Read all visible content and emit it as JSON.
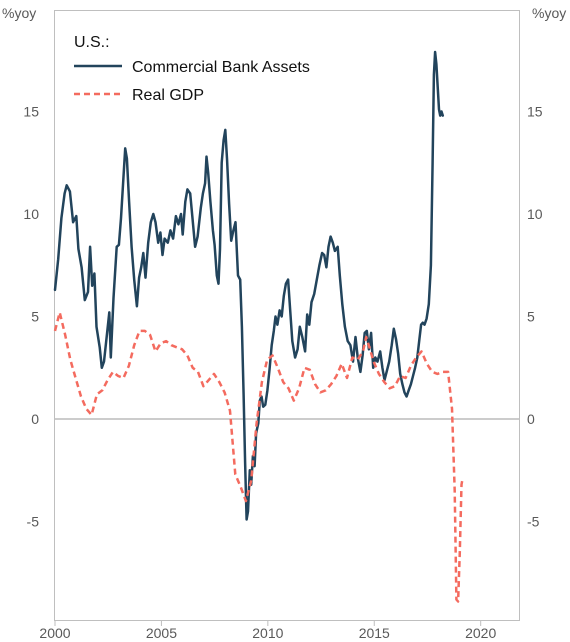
{
  "chart_data": {
    "type": "line",
    "title": "",
    "y_unit_left": "%yoy",
    "y_unit_right": "%yoy",
    "legend_title": "U.S.:",
    "legend_position": "top-left",
    "grid": false,
    "xlim": [
      2000,
      2021.8
    ],
    "ylim": [
      -9.8,
      19.9
    ],
    "x_ticks": [
      2000,
      2005,
      2010,
      2015,
      2020
    ],
    "x_tick_labels": [
      "2000",
      "2005",
      "2010",
      "2015",
      "2020"
    ],
    "y_ticks": [
      -5,
      0,
      5,
      10,
      15
    ],
    "y_tick_labels": [
      "-5",
      "0",
      "5",
      "10",
      "15"
    ],
    "series": [
      {
        "name": "Commercial Bank Assets",
        "color": "#22445c",
        "style": "solid",
        "points": [
          [
            2000.0,
            6.3
          ],
          [
            2000.15,
            7.8
          ],
          [
            2000.3,
            9.8
          ],
          [
            2000.45,
            11.0
          ],
          [
            2000.55,
            11.4
          ],
          [
            2000.7,
            11.1
          ],
          [
            2000.85,
            9.6
          ],
          [
            2001.0,
            9.9
          ],
          [
            2001.1,
            8.3
          ],
          [
            2001.25,
            7.4
          ],
          [
            2001.4,
            5.8
          ],
          [
            2001.55,
            6.2
          ],
          [
            2001.65,
            8.4
          ],
          [
            2001.75,
            6.5
          ],
          [
            2001.85,
            7.1
          ],
          [
            2001.95,
            4.5
          ],
          [
            2002.1,
            3.5
          ],
          [
            2002.2,
            2.5
          ],
          [
            2002.3,
            2.8
          ],
          [
            2002.45,
            4.2
          ],
          [
            2002.55,
            5.2
          ],
          [
            2002.62,
            3.0
          ],
          [
            2002.75,
            5.9
          ],
          [
            2002.9,
            8.4
          ],
          [
            2003.0,
            8.5
          ],
          [
            2003.1,
            9.8
          ],
          [
            2003.2,
            11.5
          ],
          [
            2003.3,
            13.2
          ],
          [
            2003.38,
            12.7
          ],
          [
            2003.48,
            10.6
          ],
          [
            2003.6,
            8.4
          ],
          [
            2003.72,
            6.8
          ],
          [
            2003.85,
            5.5
          ],
          [
            2003.95,
            6.9
          ],
          [
            2004.05,
            7.4
          ],
          [
            2004.15,
            8.1
          ],
          [
            2004.25,
            6.9
          ],
          [
            2004.38,
            8.6
          ],
          [
            2004.5,
            9.6
          ],
          [
            2004.62,
            10.0
          ],
          [
            2004.72,
            9.6
          ],
          [
            2004.85,
            8.6
          ],
          [
            2004.95,
            9.1
          ],
          [
            2005.05,
            8.0
          ],
          [
            2005.15,
            8.8
          ],
          [
            2005.3,
            8.6
          ],
          [
            2005.42,
            9.2
          ],
          [
            2005.55,
            8.8
          ],
          [
            2005.68,
            9.9
          ],
          [
            2005.8,
            9.5
          ],
          [
            2005.92,
            10.0
          ],
          [
            2006.0,
            9.0
          ],
          [
            2006.12,
            10.6
          ],
          [
            2006.22,
            11.2
          ],
          [
            2006.35,
            11.0
          ],
          [
            2006.45,
            9.9
          ],
          [
            2006.58,
            8.4
          ],
          [
            2006.7,
            8.9
          ],
          [
            2006.85,
            10.3
          ],
          [
            2006.95,
            11.0
          ],
          [
            2007.05,
            11.5
          ],
          [
            2007.12,
            12.8
          ],
          [
            2007.2,
            12.0
          ],
          [
            2007.3,
            10.6
          ],
          [
            2007.42,
            9.2
          ],
          [
            2007.5,
            8.5
          ],
          [
            2007.6,
            7.0
          ],
          [
            2007.68,
            6.6
          ],
          [
            2007.75,
            8.3
          ],
          [
            2007.83,
            12.5
          ],
          [
            2007.92,
            13.6
          ],
          [
            2008.0,
            14.1
          ],
          [
            2008.08,
            12.7
          ],
          [
            2008.18,
            10.5
          ],
          [
            2008.28,
            8.7
          ],
          [
            2008.38,
            9.2
          ],
          [
            2008.48,
            9.6
          ],
          [
            2008.6,
            7.0
          ],
          [
            2008.7,
            6.8
          ],
          [
            2008.78,
            4.5
          ],
          [
            2008.86,
            1.2
          ],
          [
            2008.93,
            -2.1
          ],
          [
            2009.0,
            -4.9
          ],
          [
            2009.07,
            -4.5
          ],
          [
            2009.15,
            -2.5
          ],
          [
            2009.22,
            -3.2
          ],
          [
            2009.3,
            -1.8
          ],
          [
            2009.38,
            -2.3
          ],
          [
            2009.45,
            -0.7
          ],
          [
            2009.55,
            -0.2
          ],
          [
            2009.62,
            0.9
          ],
          [
            2009.7,
            1.1
          ],
          [
            2009.78,
            0.6
          ],
          [
            2009.88,
            0.7
          ],
          [
            2009.98,
            1.4
          ],
          [
            2010.08,
            2.4
          ],
          [
            2010.18,
            3.6
          ],
          [
            2010.28,
            4.3
          ],
          [
            2010.36,
            5.0
          ],
          [
            2010.45,
            4.6
          ],
          [
            2010.55,
            5.3
          ],
          [
            2010.65,
            5.0
          ],
          [
            2010.75,
            6.0
          ],
          [
            2010.85,
            6.6
          ],
          [
            2010.95,
            6.8
          ],
          [
            2011.05,
            5.3
          ],
          [
            2011.15,
            3.8
          ],
          [
            2011.28,
            3.0
          ],
          [
            2011.4,
            3.4
          ],
          [
            2011.5,
            4.5
          ],
          [
            2011.62,
            4.0
          ],
          [
            2011.75,
            3.3
          ],
          [
            2011.85,
            5.1
          ],
          [
            2011.95,
            4.6
          ],
          [
            2012.05,
            5.7
          ],
          [
            2012.18,
            6.1
          ],
          [
            2012.3,
            6.8
          ],
          [
            2012.42,
            7.5
          ],
          [
            2012.55,
            8.1
          ],
          [
            2012.65,
            8.0
          ],
          [
            2012.75,
            7.4
          ],
          [
            2012.85,
            8.4
          ],
          [
            2012.95,
            8.9
          ],
          [
            2013.05,
            8.6
          ],
          [
            2013.15,
            8.2
          ],
          [
            2013.28,
            8.4
          ],
          [
            2013.38,
            7.0
          ],
          [
            2013.5,
            5.6
          ],
          [
            2013.62,
            4.5
          ],
          [
            2013.75,
            3.8
          ],
          [
            2013.88,
            3.6
          ],
          [
            2014.0,
            2.8
          ],
          [
            2014.12,
            4.0
          ],
          [
            2014.22,
            3.0
          ],
          [
            2014.35,
            2.3
          ],
          [
            2014.45,
            3.1
          ],
          [
            2014.55,
            4.2
          ],
          [
            2014.65,
            4.3
          ],
          [
            2014.75,
            3.4
          ],
          [
            2014.85,
            4.2
          ],
          [
            2014.95,
            2.5
          ],
          [
            2015.05,
            3.0
          ],
          [
            2015.15,
            2.8
          ],
          [
            2015.28,
            3.3
          ],
          [
            2015.38,
            2.5
          ],
          [
            2015.48,
            1.9
          ],
          [
            2015.58,
            2.3
          ],
          [
            2015.7,
            2.8
          ],
          [
            2015.82,
            3.6
          ],
          [
            2015.92,
            4.4
          ],
          [
            2016.02,
            3.9
          ],
          [
            2016.12,
            3.2
          ],
          [
            2016.22,
            2.2
          ],
          [
            2016.32,
            1.7
          ],
          [
            2016.42,
            1.3
          ],
          [
            2016.52,
            1.1
          ],
          [
            2016.62,
            1.4
          ],
          [
            2016.72,
            1.7
          ],
          [
            2016.82,
            2.1
          ],
          [
            2016.92,
            2.5
          ],
          [
            2017.02,
            3.0
          ],
          [
            2017.12,
            3.9
          ],
          [
            2017.2,
            4.6
          ],
          [
            2017.28,
            4.7
          ],
          [
            2017.36,
            4.6
          ],
          [
            2017.46,
            4.9
          ],
          [
            2017.56,
            5.6
          ],
          [
            2017.66,
            7.5
          ],
          [
            2017.74,
            12.5
          ],
          [
            2017.8,
            16.8
          ],
          [
            2017.86,
            17.9
          ],
          [
            2017.92,
            17.3
          ],
          [
            2017.98,
            16.2
          ],
          [
            2018.04,
            15.1
          ],
          [
            2018.1,
            14.8
          ],
          [
            2018.16,
            15.0
          ],
          [
            2018.22,
            14.8
          ]
        ]
      },
      {
        "name": "Real GDP",
        "color": "#f46b5f",
        "style": "dashed",
        "points": [
          [
            2000.0,
            4.3
          ],
          [
            2000.22,
            5.2
          ],
          [
            2000.48,
            4.1
          ],
          [
            2000.72,
            2.9
          ],
          [
            2000.97,
            2.0
          ],
          [
            2001.22,
            1.1
          ],
          [
            2001.47,
            0.5
          ],
          [
            2001.72,
            0.2
          ],
          [
            2001.97,
            1.2
          ],
          [
            2002.22,
            1.4
          ],
          [
            2002.47,
            1.9
          ],
          [
            2002.72,
            2.3
          ],
          [
            2002.97,
            2.1
          ],
          [
            2003.22,
            2.0
          ],
          [
            2003.47,
            2.6
          ],
          [
            2003.72,
            3.6
          ],
          [
            2003.97,
            4.3
          ],
          [
            2004.22,
            4.3
          ],
          [
            2004.47,
            4.1
          ],
          [
            2004.72,
            3.3
          ],
          [
            2004.97,
            3.7
          ],
          [
            2005.22,
            3.8
          ],
          [
            2005.47,
            3.6
          ],
          [
            2005.72,
            3.5
          ],
          [
            2005.97,
            3.4
          ],
          [
            2006.22,
            3.1
          ],
          [
            2006.47,
            2.5
          ],
          [
            2006.72,
            2.3
          ],
          [
            2006.97,
            1.6
          ],
          [
            2007.22,
            1.9
          ],
          [
            2007.47,
            2.2
          ],
          [
            2007.72,
            1.8
          ],
          [
            2007.97,
            1.3
          ],
          [
            2008.22,
            0.4
          ],
          [
            2008.47,
            -2.7
          ],
          [
            2008.72,
            -3.3
          ],
          [
            2008.97,
            -4.0
          ],
          [
            2009.22,
            -3.0
          ],
          [
            2009.47,
            -0.2
          ],
          [
            2009.72,
            1.8
          ],
          [
            2009.97,
            2.9
          ],
          [
            2010.22,
            3.1
          ],
          [
            2010.47,
            2.5
          ],
          [
            2010.72,
            1.8
          ],
          [
            2010.97,
            1.5
          ],
          [
            2011.22,
            0.9
          ],
          [
            2011.47,
            1.5
          ],
          [
            2011.72,
            2.5
          ],
          [
            2011.97,
            2.4
          ],
          [
            2012.22,
            1.7
          ],
          [
            2012.47,
            1.3
          ],
          [
            2012.72,
            1.4
          ],
          [
            2012.97,
            1.7
          ],
          [
            2013.22,
            2.1
          ],
          [
            2013.47,
            2.7
          ],
          [
            2013.72,
            2.0
          ],
          [
            2013.97,
            3.0
          ],
          [
            2014.22,
            2.9
          ],
          [
            2014.47,
            3.3
          ],
          [
            2014.62,
            4.0
          ],
          [
            2014.8,
            3.4
          ],
          [
            2014.97,
            2.8
          ],
          [
            2015.22,
            2.2
          ],
          [
            2015.47,
            1.8
          ],
          [
            2015.72,
            1.5
          ],
          [
            2015.97,
            1.6
          ],
          [
            2016.22,
            2.1
          ],
          [
            2016.47,
            2.0
          ],
          [
            2016.72,
            2.6
          ],
          [
            2016.97,
            3.0
          ],
          [
            2017.22,
            3.3
          ],
          [
            2017.47,
            2.7
          ],
          [
            2017.72,
            2.3
          ],
          [
            2017.97,
            2.2
          ],
          [
            2018.22,
            2.3
          ],
          [
            2018.47,
            2.3
          ],
          [
            2018.65,
            0.5
          ],
          [
            2018.78,
            -3.5
          ],
          [
            2018.86,
            -8.8
          ],
          [
            2018.94,
            -8.9
          ],
          [
            2019.02,
            -6.5
          ],
          [
            2019.1,
            -3.2
          ],
          [
            2019.15,
            -2.9
          ]
        ]
      }
    ]
  }
}
